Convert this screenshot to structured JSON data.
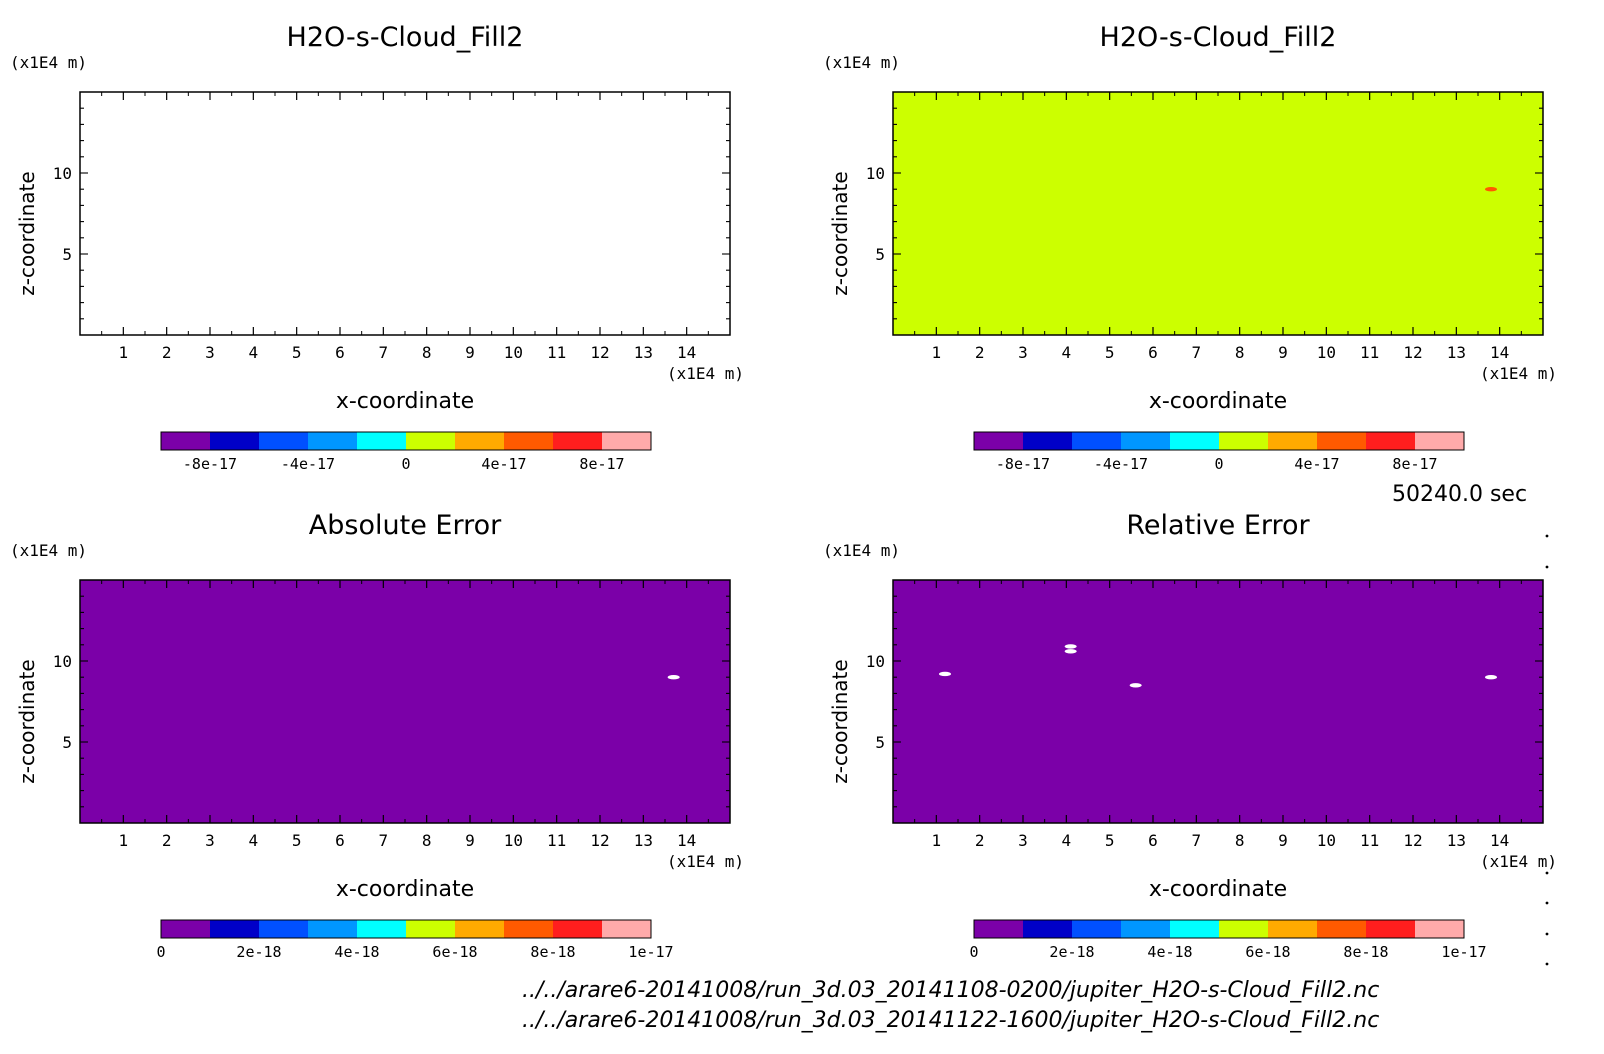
{
  "time_label": "50240.0 sec",
  "files": [
    "../../arare6-20141008/run_3d.03_20141108-0200/jupiter_H2O-s-Cloud_Fill2.nc",
    "../../arare6-20141008/run_3d.03_20141122-1600/jupiter_H2O-s-Cloud_Fill2.nc"
  ],
  "colors": {
    "levels": [
      "#7b00a8",
      "#0000c8",
      "#0050ff",
      "#0096ff",
      "#00ffff",
      "#ccff00",
      "#ffaa00",
      "#ff5a00",
      "#ff1e1e",
      "#ffaaaa"
    ],
    "white": "#ffffff"
  },
  "chart_data": [
    {
      "type": "heatmap",
      "title": "H2O-s-Cloud_Fill2",
      "xlabel": "x-coordinate",
      "ylabel": "z-coordinate",
      "x_unit": "(x1E4 m)",
      "y_unit": "(x1E4 m)",
      "xlim": [
        0,
        15
      ],
      "ylim": [
        0,
        15
      ],
      "x_ticks": [
        "1",
        "2",
        "3",
        "4",
        "5",
        "6",
        "7",
        "8",
        "9",
        "10",
        "11",
        "12",
        "13",
        "14"
      ],
      "y_ticks": [
        "5",
        "10"
      ],
      "field": "empty (no fill)",
      "fill_color": "#ffffff",
      "colorbar": {
        "range": [
          -1e-16,
          1e-16
        ],
        "levels": 10,
        "tick_labels": [
          "-8e-17",
          "-4e-17",
          "0",
          "4e-17",
          "8e-17"
        ],
        "tick_values": [
          -8e-17,
          -4e-17,
          0,
          4e-17,
          8e-17
        ]
      },
      "spots": []
    },
    {
      "type": "heatmap",
      "title": "H2O-s-Cloud_Fill2",
      "xlabel": "x-coordinate",
      "ylabel": "z-coordinate",
      "x_unit": "(x1E4 m)",
      "y_unit": "(x1E4 m)",
      "xlim": [
        0,
        15
      ],
      "ylim": [
        0,
        15
      ],
      "x_ticks": [
        "1",
        "2",
        "3",
        "4",
        "5",
        "6",
        "7",
        "8",
        "9",
        "10",
        "11",
        "12",
        "13",
        "14"
      ],
      "y_ticks": [
        "5",
        "10"
      ],
      "field": "uniform value 0 to 2e-17",
      "fill_color": "#ccff00",
      "colorbar": {
        "range": [
          -1e-16,
          1e-16
        ],
        "levels": 10,
        "tick_labels": [
          "-8e-17",
          "-4e-17",
          "0",
          "4e-17",
          "8e-17"
        ],
        "tick_values": [
          -8e-17,
          -4e-17,
          0,
          4e-17,
          8e-17
        ]
      },
      "spots": [
        {
          "x": 13.8,
          "z": 9.0,
          "color": "#ff5a00"
        }
      ]
    },
    {
      "type": "heatmap",
      "title": "Absolute Error",
      "xlabel": "x-coordinate",
      "ylabel": "z-coordinate",
      "x_unit": "(x1E4 m)",
      "y_unit": "(x1E4 m)",
      "xlim": [
        0,
        15
      ],
      "ylim": [
        0,
        15
      ],
      "x_ticks": [
        "1",
        "2",
        "3",
        "4",
        "5",
        "6",
        "7",
        "8",
        "9",
        "10",
        "11",
        "12",
        "13",
        "14"
      ],
      "y_ticks": [
        "5",
        "10"
      ],
      "field": "uniform value 0 to 1e-18",
      "fill_color": "#7b00a8",
      "colorbar": {
        "range": [
          0,
          1e-17
        ],
        "levels": 10,
        "tick_labels": [
          "0",
          "2e-18",
          "4e-18",
          "6e-18",
          "8e-18",
          "1e-17"
        ],
        "tick_values": [
          0,
          2e-18,
          4e-18,
          6e-18,
          8e-18,
          1e-17
        ]
      },
      "spots": [
        {
          "x": 13.7,
          "z": 9.0,
          "color": "#ffffff"
        }
      ]
    },
    {
      "type": "heatmap",
      "title": "Relative Error",
      "xlabel": "x-coordinate",
      "ylabel": "z-coordinate",
      "x_unit": "(x1E4 m)",
      "y_unit": "(x1E4 m)",
      "xlim": [
        0,
        15
      ],
      "ylim": [
        0,
        15
      ],
      "x_ticks": [
        "1",
        "2",
        "3",
        "4",
        "5",
        "6",
        "7",
        "8",
        "9",
        "10",
        "11",
        "12",
        "13",
        "14"
      ],
      "y_ticks": [
        "5",
        "10"
      ],
      "field": "uniform value 0 to 1e-18",
      "fill_color": "#7b00a8",
      "colorbar": {
        "range": [
          0,
          1e-17
        ],
        "levels": 10,
        "tick_labels": [
          "0",
          "2e-18",
          "4e-18",
          "6e-18",
          "8e-18",
          "1e-17"
        ],
        "tick_values": [
          0,
          2e-18,
          4e-18,
          6e-18,
          8e-18,
          1e-17
        ]
      },
      "spots": [
        {
          "x": 1.2,
          "z": 9.2,
          "color": "#ffffff"
        },
        {
          "x": 4.1,
          "z": 10.9,
          "color": "#ffffff"
        },
        {
          "x": 4.1,
          "z": 10.6,
          "color": "#ffffff"
        },
        {
          "x": 5.6,
          "z": 8.5,
          "color": "#ffffff"
        },
        {
          "x": 13.8,
          "z": 9.0,
          "color": "#ffffff"
        }
      ]
    }
  ]
}
